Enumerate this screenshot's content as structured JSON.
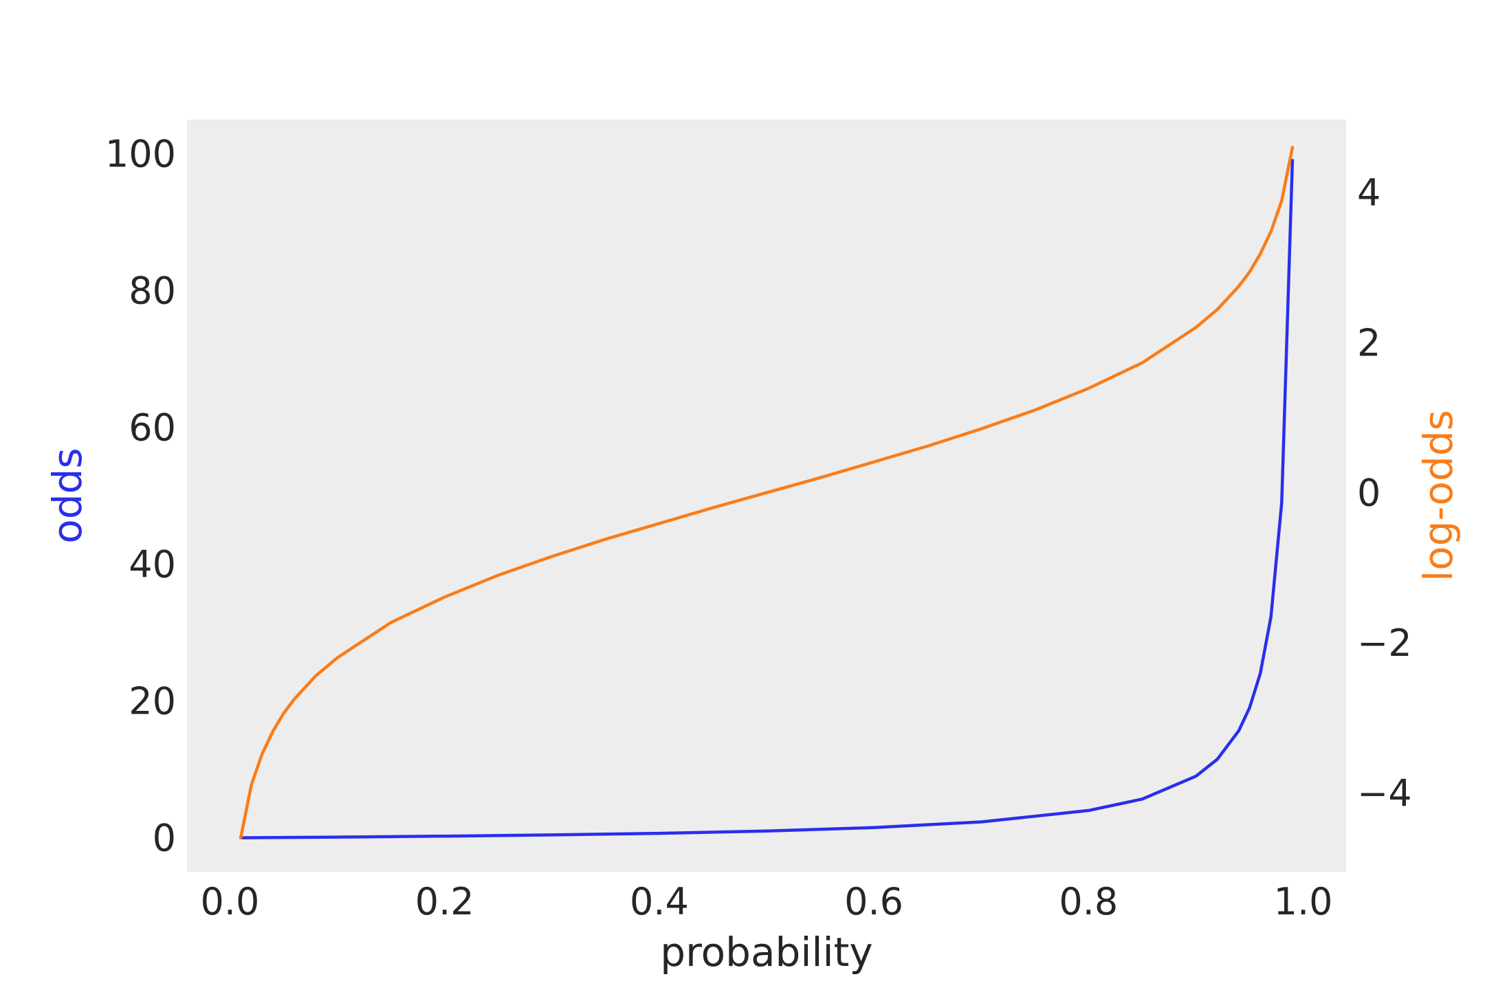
{
  "chart_data": {
    "type": "line",
    "xlabel": "probability",
    "ylabel_left": "odds",
    "ylabel_right": "log-odds",
    "xlim": [
      -0.04,
      1.04
    ],
    "ylim_left": [
      -4.95,
      104.96
    ],
    "ylim_right": [
      -5.05,
      4.97
    ],
    "x_ticks": [
      0.0,
      0.2,
      0.4,
      0.6,
      0.8,
      1.0
    ],
    "x_tick_labels": [
      "0.0",
      "0.2",
      "0.4",
      "0.6",
      "0.8",
      "1.0"
    ],
    "y_left_ticks": [
      0,
      20,
      40,
      60,
      80,
      100
    ],
    "y_left_tick_labels": [
      "0",
      "20",
      "40",
      "60",
      "80",
      "100"
    ],
    "y_right_ticks": [
      -4,
      -2,
      0,
      2,
      4
    ],
    "y_right_tick_labels": [
      "−4",
      "−2",
      "0",
      "2",
      "4"
    ],
    "grid": false,
    "colors": {
      "background": "#ededed",
      "odds": "#2a2eec",
      "log_odds": "#fa7c17",
      "text": "#262626"
    },
    "series": [
      {
        "name": "odds",
        "axis": "left",
        "x": [
          0.01,
          0.1,
          0.2,
          0.3,
          0.4,
          0.5,
          0.6,
          0.7,
          0.8,
          0.85,
          0.9,
          0.92,
          0.94,
          0.95,
          0.96,
          0.97,
          0.98,
          0.99
        ],
        "y": [
          0.01,
          0.11,
          0.25,
          0.43,
          0.67,
          1.0,
          1.5,
          2.33,
          4.0,
          5.67,
          9.0,
          11.5,
          15.67,
          19.0,
          24.0,
          32.33,
          49.0,
          99.0
        ]
      },
      {
        "name": "log-odds",
        "axis": "right",
        "x": [
          0.01,
          0.02,
          0.03,
          0.04,
          0.05,
          0.06,
          0.08,
          0.1,
          0.15,
          0.2,
          0.25,
          0.3,
          0.35,
          0.4,
          0.45,
          0.5,
          0.55,
          0.6,
          0.65,
          0.7,
          0.75,
          0.8,
          0.85,
          0.9,
          0.92,
          0.94,
          0.95,
          0.96,
          0.97,
          0.98,
          0.99
        ],
        "y": [
          -4.6,
          -3.89,
          -3.48,
          -3.18,
          -2.94,
          -2.75,
          -2.44,
          -2.2,
          -1.73,
          -1.39,
          -1.1,
          -0.85,
          -0.62,
          -0.41,
          -0.2,
          0.0,
          0.2,
          0.41,
          0.62,
          0.85,
          1.1,
          1.39,
          1.73,
          2.2,
          2.44,
          2.75,
          2.94,
          3.18,
          3.48,
          3.89,
          4.6
        ]
      }
    ]
  }
}
